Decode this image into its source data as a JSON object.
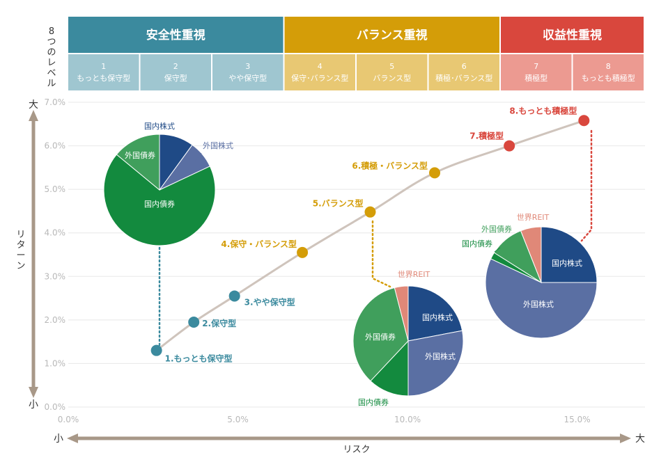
{
  "levels_label": "8つのレベル",
  "categories": [
    {
      "label": "安全性重視",
      "color": "#3b8a9e",
      "sub_color": "#9fc6d0",
      "start": 0,
      "span": 3
    },
    {
      "label": "バランス重視",
      "color": "#d49d08",
      "sub_color": "#e8c873",
      "start": 3,
      "span": 3
    },
    {
      "label": "収益性重視",
      "color": "#d9473d",
      "sub_color": "#ec9a91",
      "start": 6,
      "span": 2
    }
  ],
  "levels": [
    {
      "num": "1",
      "name": "もっとも保守型"
    },
    {
      "num": "2",
      "name": "保守型"
    },
    {
      "num": "3",
      "name": "やや保守型"
    },
    {
      "num": "4",
      "name": "保守･バランス型"
    },
    {
      "num": "5",
      "name": "バランス型"
    },
    {
      "num": "6",
      "name": "積極･バランス型"
    },
    {
      "num": "7",
      "name": "積極型"
    },
    {
      "num": "8",
      "name": "もっとも積極型"
    }
  ],
  "chart_data": {
    "type": "scatter",
    "xlabel": "リスク",
    "ylabel": "リターン",
    "x_low": "小",
    "x_high": "大",
    "y_low": "小",
    "y_high": "大",
    "xlim": [
      0,
      17
    ],
    "ylim": [
      0,
      7
    ],
    "xticks": [
      "0.0%",
      "5.0%",
      "10.0%",
      "15.0%"
    ],
    "xtick_values": [
      0,
      5,
      10,
      15
    ],
    "yticks": [
      "0.0%",
      "1.0%",
      "2.0%",
      "3.0%",
      "4.0%",
      "5.0%",
      "6.0%",
      "7.0%"
    ],
    "ytick_values": [
      0,
      1,
      2,
      3,
      4,
      5,
      6,
      7
    ],
    "grid": true,
    "points": [
      {
        "label": "1.もっとも保守型",
        "x": 2.6,
        "y": 1.3,
        "color": "#3b8a9e"
      },
      {
        "label": "2.保守型",
        "x": 3.7,
        "y": 1.95,
        "color": "#3b8a9e"
      },
      {
        "label": "3.やや保守型",
        "x": 4.9,
        "y": 2.55,
        "color": "#3b8a9e"
      },
      {
        "label": "4.保守・バランス型",
        "x": 6.9,
        "y": 3.55,
        "color": "#d49d08"
      },
      {
        "label": "5.バランス型",
        "x": 8.9,
        "y": 4.48,
        "color": "#d49d08"
      },
      {
        "label": "6.積極・バランス型",
        "x": 10.8,
        "y": 5.38,
        "color": "#d49d08"
      },
      {
        "label": "7.積極型",
        "x": 13.0,
        "y": 6.0,
        "color": "#d9473d"
      },
      {
        "label": "8.もっとも積極型",
        "x": 15.2,
        "y": 6.58,
        "color": "#d9473d"
      }
    ],
    "pies": [
      {
        "for_point": 0,
        "slices": [
          {
            "label": "国内株式",
            "value": 10,
            "color": "#1f4a86"
          },
          {
            "label": "外国株式",
            "value": 8,
            "color": "#5a6fa3"
          },
          {
            "label": "国内債券",
            "value": 68,
            "color": "#138a3e"
          },
          {
            "label": "外国債券",
            "value": 14,
            "color": "#409f5c"
          }
        ]
      },
      {
        "for_point": 4,
        "slices": [
          {
            "label": "国内株式",
            "value": 22,
            "color": "#1f4a86"
          },
          {
            "label": "外国株式",
            "value": 28,
            "color": "#5a6fa3"
          },
          {
            "label": "国内債券",
            "value": 12,
            "color": "#138a3e"
          },
          {
            "label": "外国債券",
            "value": 34,
            "color": "#409f5c"
          },
          {
            "label": "世界REIT",
            "value": 4,
            "color": "#e08878"
          }
        ]
      },
      {
        "for_point": 7,
        "slices": [
          {
            "label": "国内株式",
            "value": 25,
            "color": "#1f4a86"
          },
          {
            "label": "外国株式",
            "value": 57,
            "color": "#5a6fa3"
          },
          {
            "label": "国内債券",
            "value": 2,
            "color": "#138a3e"
          },
          {
            "label": "外国債券",
            "value": 10,
            "color": "#409f5c"
          },
          {
            "label": "世界REIT",
            "value": 6,
            "color": "#e08878"
          }
        ]
      }
    ]
  }
}
